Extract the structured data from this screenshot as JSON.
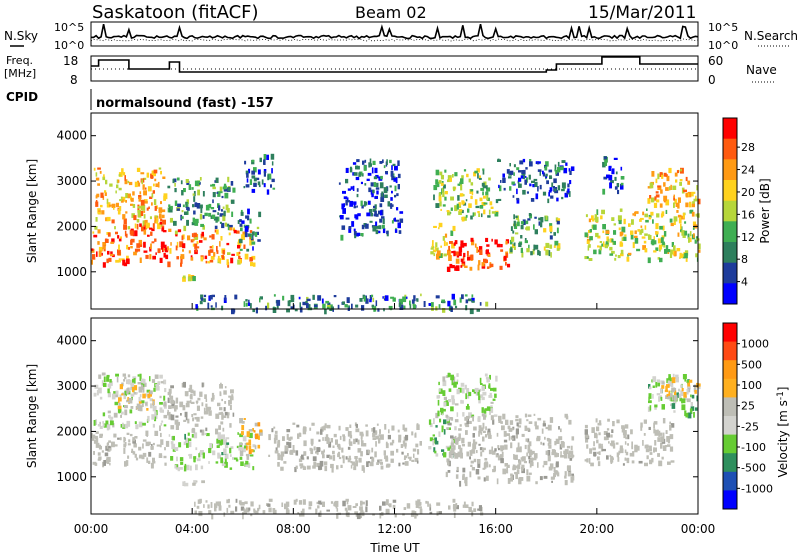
{
  "header": {
    "station": "Saskatoon (fitACF)",
    "beam": "Beam 02",
    "date": "15/Mar/2011"
  },
  "noise_panel": {
    "left_label": "N.Sky",
    "right_label": "N.Search",
    "ticks": [
      "10^5",
      "10^0"
    ]
  },
  "freq_panel": {
    "left_label_1": "Freq.",
    "left_label_2": "[MHz]",
    "left_ticks": [
      "18",
      "8"
    ],
    "right_label": "Nave",
    "right_ticks": [
      "60",
      "0"
    ]
  },
  "cpid": {
    "label": "CPID",
    "program": "normalsound (fast) -157"
  },
  "x_axis": {
    "title": "Time UT",
    "ticks": [
      "00:00",
      "04:00",
      "08:00",
      "12:00",
      "16:00",
      "20:00",
      "00:00"
    ]
  },
  "colors": {
    "power_scale": [
      "#0000ff",
      "#1e3c9b",
      "#2e7f5d",
      "#3fae52",
      "#b6d63a",
      "#ffd21e",
      "#ff9a14",
      "#ff5a0f",
      "#ff0000"
    ],
    "velocity_scale": [
      "#ff0000",
      "#ff4a14",
      "#ff9a14",
      "#ffb020",
      "#bebeb6",
      "#d3d3cf",
      "#66cc33",
      "#2e8f5d",
      "#1e50b4",
      "#0000ff"
    ],
    "ground_scatter": "#bebeb6"
  },
  "chart_data": [
    {
      "type": "heatmap",
      "title": "Power",
      "xlabel": "",
      "ylabel": "Slant Range [km]",
      "xlim": [
        0,
        24
      ],
      "ylim": [
        180,
        4500
      ],
      "y_ticks": [
        "1000",
        "2000",
        "3000",
        "4000"
      ],
      "colorbar": {
        "label": "Power [dB]",
        "ticks": [
          "4",
          "8",
          "12",
          "16",
          "20",
          "24",
          "28"
        ],
        "range": [
          0,
          30
        ]
      },
      "regions": [
        {
          "t": [
            0.0,
            1.5
          ],
          "r": [
            1200,
            2000
          ],
          "value": 24
        },
        {
          "t": [
            0.1,
            2.9
          ],
          "r": [
            2000,
            3300
          ],
          "value": 20
        },
        {
          "t": [
            1.5,
            3.0
          ],
          "r": [
            1300,
            2100
          ],
          "value": 26
        },
        {
          "t": [
            3.0,
            6.4
          ],
          "r": [
            1200,
            2000
          ],
          "value": 22
        },
        {
          "t": [
            3.6,
            4.1
          ],
          "r": [
            850,
            950
          ],
          "value": 18
        },
        {
          "t": [
            3.0,
            5.6
          ],
          "r": [
            2000,
            3100
          ],
          "value": 10
        },
        {
          "t": [
            5.8,
            6.7
          ],
          "r": [
            1500,
            2400
          ],
          "value": 8
        },
        {
          "t": [
            6.0,
            7.2
          ],
          "r": [
            2800,
            3600
          ],
          "value": 6
        },
        {
          "t": [
            4.0,
            15.6
          ],
          "r": [
            180,
            520
          ],
          "value": 8
        },
        {
          "t": [
            9.8,
            12.2
          ],
          "r": [
            1800,
            3500
          ],
          "value": 5
        },
        {
          "t": [
            13.4,
            14.3
          ],
          "r": [
            1400,
            2100
          ],
          "value": 16
        },
        {
          "t": [
            13.5,
            16.0
          ],
          "r": [
            2200,
            3300
          ],
          "value": 14
        },
        {
          "t": [
            14.0,
            16.5
          ],
          "r": [
            1100,
            1800
          ],
          "value": 26
        },
        {
          "t": [
            16.5,
            18.5
          ],
          "r": [
            1400,
            2300
          ],
          "value": 12
        },
        {
          "t": [
            16.0,
            19.0
          ],
          "r": [
            2600,
            3500
          ],
          "value": 6
        },
        {
          "t": [
            19.5,
            24.0
          ],
          "r": [
            1300,
            2400
          ],
          "value": 16
        },
        {
          "t": [
            22.0,
            24.0
          ],
          "r": [
            2500,
            3300
          ],
          "value": 20
        },
        {
          "t": [
            20.2,
            21.0
          ],
          "r": [
            2800,
            3600
          ],
          "value": 6
        }
      ]
    },
    {
      "type": "heatmap",
      "title": "Velocity",
      "xlabel": "Time UT",
      "ylabel": "Slant Range [km]",
      "xlim": [
        0,
        24
      ],
      "ylim": [
        180,
        4500
      ],
      "y_ticks": [
        "1000",
        "2000",
        "3000",
        "4000"
      ],
      "colorbar": {
        "label": "Velocity [m s-1]",
        "ticks": [
          "1000",
          "500",
          "100",
          "25",
          "-25",
          "-100",
          "-500",
          "-1000"
        ],
        "range": [
          -1200,
          1200
        ]
      },
      "regions": [
        {
          "t": [
            0.0,
            3.0
          ],
          "r": [
            1300,
            2050
          ],
          "value": 0,
          "ground": true
        },
        {
          "t": [
            0.1,
            2.9
          ],
          "r": [
            2100,
            3300
          ],
          "value": -150
        },
        {
          "t": [
            1.0,
            2.5
          ],
          "r": [
            2500,
            3200
          ],
          "value": 200
        },
        {
          "t": [
            3.0,
            6.4
          ],
          "r": [
            1200,
            2000
          ],
          "value": -250
        },
        {
          "t": [
            3.6,
            4.4
          ],
          "r": [
            850,
            950
          ],
          "value": 80
        },
        {
          "t": [
            3.0,
            5.6
          ],
          "r": [
            2000,
            3100
          ],
          "value": 0,
          "ground": true
        },
        {
          "t": [
            5.8,
            6.7
          ],
          "r": [
            1500,
            2300
          ],
          "value": 300
        },
        {
          "t": [
            4.0,
            15.6
          ],
          "r": [
            180,
            520
          ],
          "value": 0,
          "ground": true
        },
        {
          "t": [
            7.0,
            13.0
          ],
          "r": [
            1200,
            2200
          ],
          "value": 0,
          "ground": true
        },
        {
          "t": [
            13.3,
            14.4
          ],
          "r": [
            1500,
            2300
          ],
          "value": -300
        },
        {
          "t": [
            13.6,
            16.0
          ],
          "r": [
            2300,
            3300
          ],
          "value": -200
        },
        {
          "t": [
            14.0,
            19.0
          ],
          "r": [
            900,
            2400
          ],
          "value": 0,
          "ground": true
        },
        {
          "t": [
            19.5,
            23.0
          ],
          "r": [
            1300,
            2300
          ],
          "value": 0,
          "ground": true
        },
        {
          "t": [
            22.0,
            24.0
          ],
          "r": [
            2400,
            3300
          ],
          "value": -300
        },
        {
          "t": [
            22.5,
            24.0
          ],
          "r": [
            2700,
            3200
          ],
          "value": 200
        }
      ]
    }
  ]
}
